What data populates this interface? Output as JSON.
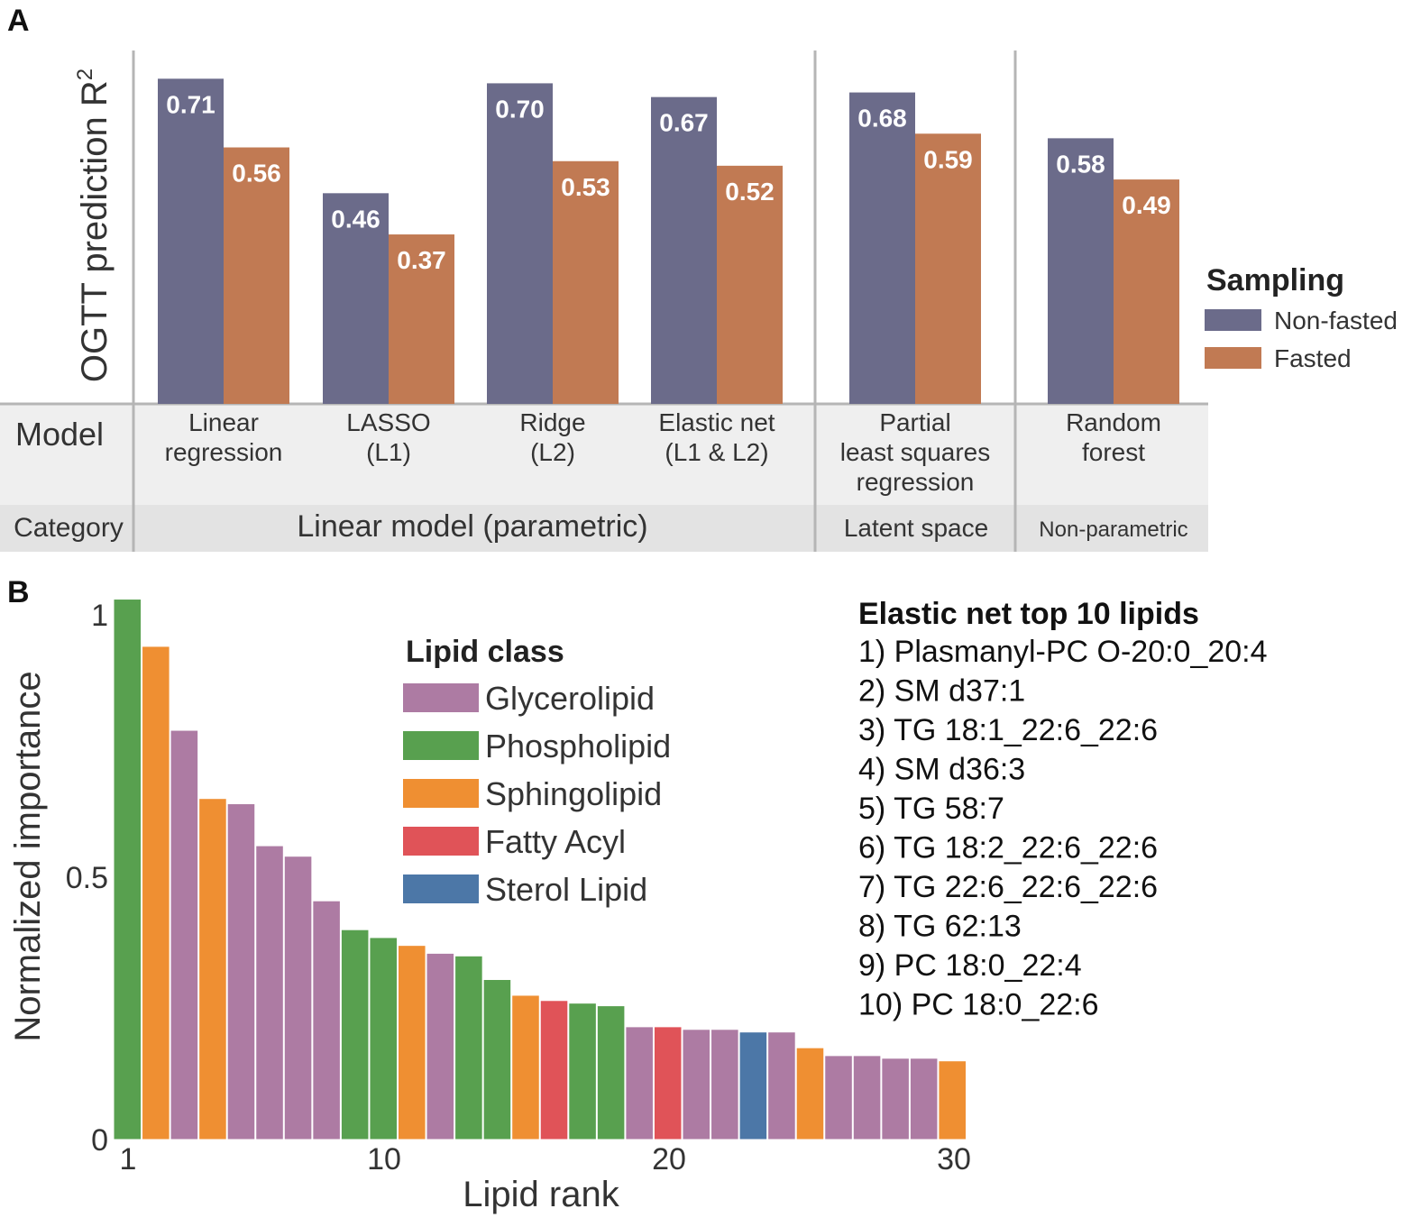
{
  "panel_labels": [
    "A",
    "B"
  ],
  "chart_data": [
    {
      "type": "bar",
      "panel": "A",
      "ylabel": "OGTT prediction R",
      "ylabel_superscript": "2",
      "ylim": [
        0,
        0.75
      ],
      "series": [
        {
          "name": "Non-fasted",
          "color": "#6b6b8a",
          "values": [
            0.71,
            0.46,
            0.7,
            0.67,
            0.68,
            0.58
          ]
        },
        {
          "name": "Fasted",
          "color": "#c17a53",
          "values": [
            0.56,
            0.37,
            0.53,
            0.52,
            0.59,
            0.49
          ]
        }
      ],
      "value_labels": {
        "Non-fasted": [
          "0.71",
          "0.46",
          "0.70",
          "0.67",
          "0.68",
          "0.58"
        ],
        "Fasted": [
          "0.56",
          "0.37",
          "0.53",
          "0.52",
          "0.59",
          "0.49"
        ]
      },
      "table": {
        "row_headers": [
          "Model",
          "Category"
        ],
        "models": [
          [
            "Linear",
            "regression"
          ],
          [
            "LASSO",
            "(L1)"
          ],
          [
            "Ridge",
            "(L2)"
          ],
          [
            "Elastic net",
            "(L1 & L2)"
          ],
          [
            "Partial",
            "least squares",
            "regression"
          ],
          [
            "Random",
            "forest"
          ]
        ],
        "categories": [
          {
            "name": "Linear model (parametric)",
            "models": 4
          },
          {
            "name": "Latent space",
            "models": 1
          },
          {
            "name": "Non-parametric",
            "models": 1
          }
        ]
      },
      "legend": {
        "title": "Sampling",
        "position": "right",
        "entries": [
          "Non-fasted",
          "Fasted"
        ]
      }
    },
    {
      "type": "bar",
      "panel": "B",
      "xlabel": "Lipid rank",
      "ylabel": "Normalized importance",
      "ylim": [
        0,
        1.05
      ],
      "x_ticks": [
        "1",
        "10",
        "20",
        "30"
      ],
      "y_ticks": [
        "0",
        "0.5",
        "1"
      ],
      "ranks": [
        1,
        2,
        3,
        4,
        5,
        6,
        7,
        8,
        9,
        10,
        11,
        12,
        13,
        14,
        15,
        16,
        17,
        18,
        19,
        20,
        21,
        22,
        23,
        24,
        25,
        26,
        27,
        28,
        29,
        30
      ],
      "values": [
        1.03,
        0.94,
        0.78,
        0.65,
        0.64,
        0.56,
        0.54,
        0.455,
        0.4,
        0.385,
        0.37,
        0.355,
        0.35,
        0.305,
        0.275,
        0.265,
        0.26,
        0.255,
        0.215,
        0.215,
        0.21,
        0.21,
        0.205,
        0.205,
        0.175,
        0.16,
        0.16,
        0.155,
        0.155,
        0.15
      ],
      "classes": [
        "Phospholipid",
        "Sphingolipid",
        "Glycerolipid",
        "Sphingolipid",
        "Glycerolipid",
        "Glycerolipid",
        "Glycerolipid",
        "Glycerolipid",
        "Phospholipid",
        "Phospholipid",
        "Sphingolipid",
        "Glycerolipid",
        "Phospholipid",
        "Phospholipid",
        "Sphingolipid",
        "Fatty Acyl",
        "Phospholipid",
        "Phospholipid",
        "Glycerolipid",
        "Fatty Acyl",
        "Glycerolipid",
        "Glycerolipid",
        "Sterol Lipid",
        "Glycerolipid",
        "Sphingolipid",
        "Glycerolipid",
        "Glycerolipid",
        "Glycerolipid",
        "Glycerolipid",
        "Sphingolipid"
      ],
      "legend": {
        "title": "Lipid class",
        "position": "top-center",
        "entries": [
          {
            "name": "Glycerolipid",
            "color": "#ad7ba3"
          },
          {
            "name": "Phospholipid",
            "color": "#58a04f"
          },
          {
            "name": "Sphingolipid",
            "color": "#ef8f32"
          },
          {
            "name": "Fatty Acyl",
            "color": "#e05358"
          },
          {
            "name": "Sterol Lipid",
            "color": "#4c77a7"
          }
        ]
      },
      "annotation": {
        "title": "Elastic net top 10 lipids",
        "items": [
          "1) Plasmanyl-PC O-20:0_20:4",
          "2) SM d37:1",
          "3) TG 18:1_22:6_22:6",
          "4) SM d36:3",
          "5) TG 58:7",
          "6) TG 18:2_22:6_22:6",
          "7) TG 22:6_22:6_22:6",
          "8) TG 62:13",
          "9) PC 18:0_22:4",
          "10) PC 18:0_22:6"
        ]
      }
    }
  ]
}
